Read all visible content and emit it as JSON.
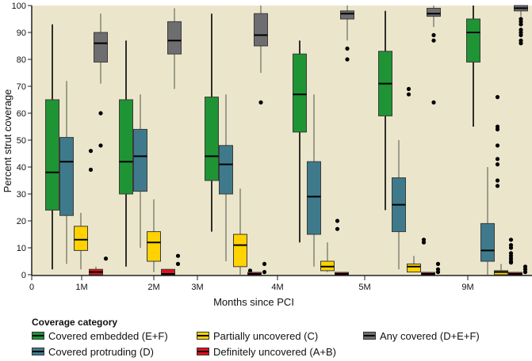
{
  "chart_data": {
    "type": "boxplot",
    "title": "",
    "xlabel": "Months since PCI",
    "ylabel": "Percent strut coverage",
    "ylim": [
      0,
      100
    ],
    "yticks": [
      0,
      10,
      20,
      30,
      40,
      50,
      60,
      70,
      80,
      90,
      100
    ],
    "xticks": [
      "0",
      "1M",
      "2M",
      "3M",
      "4M",
      "5M",
      "9M"
    ],
    "categories": [
      "1M",
      "2M",
      "3M",
      "4M",
      "5M",
      "9M"
    ],
    "grid": false,
    "legend_position": "bottom",
    "legend_title": "Coverage category",
    "series": [
      {
        "name": "Covered embedded (E+F)",
        "color": "#1f9435",
        "boxes": [
          {
            "min": 2,
            "q1": 24,
            "median": 38,
            "q3": 65,
            "max": 93,
            "outliers": []
          },
          {
            "min": 3,
            "q1": 30,
            "median": 42,
            "q3": 65,
            "max": 87,
            "outliers": []
          },
          {
            "min": 16,
            "q1": 35,
            "median": 44,
            "q3": 66,
            "max": 97,
            "outliers": []
          },
          {
            "min": 12,
            "q1": 53,
            "median": 67,
            "q3": 82,
            "max": 87,
            "outliers": []
          },
          {
            "min": 24,
            "q1": 59,
            "median": 71,
            "q3": 83,
            "max": 98,
            "outliers": [
              20
            ]
          },
          {
            "min": 55,
            "q1": 79,
            "median": 90,
            "q3": 95,
            "max": 100,
            "outliers": []
          }
        ]
      },
      {
        "name": "Covered protruding (D)",
        "color": "#3f7a8c",
        "boxes": [
          {
            "min": 4,
            "q1": 22,
            "median": 42,
            "q3": 51,
            "max": 72,
            "outliers": []
          },
          {
            "min": 10,
            "q1": 31,
            "median": 44,
            "q3": 54,
            "max": 67,
            "outliers": []
          },
          {
            "min": 5,
            "q1": 30,
            "median": 41,
            "q3": 48,
            "max": 67,
            "outliers": []
          },
          {
            "min": 3,
            "q1": 15,
            "median": 29,
            "q3": 42,
            "max": 67,
            "outliers": []
          },
          {
            "min": 2,
            "q1": 16,
            "median": 26,
            "q3": 36,
            "max": 50,
            "outliers": [
              67,
              69
            ]
          },
          {
            "min": 0,
            "q1": 5,
            "median": 9,
            "q3": 19,
            "max": 40,
            "outliers": [
              41,
              43,
              48,
              54,
              55,
              66,
              33,
              35
            ]
          }
        ]
      },
      {
        "name": "Partially uncovered (C)",
        "color": "#ffd200",
        "boxes": [
          {
            "min": 2,
            "q1": 9,
            "median": 13,
            "q3": 18,
            "max": 23,
            "outliers": [
              39,
              46
            ]
          },
          {
            "min": 1,
            "q1": 5,
            "median": 12,
            "q3": 16,
            "max": 28,
            "outliers": []
          },
          {
            "min": 0,
            "q1": 3,
            "median": 11,
            "q3": 15,
            "max": 32,
            "outliers": [
              1.5
            ]
          },
          {
            "min": 1,
            "q1": 1.5,
            "median": 3,
            "q3": 5,
            "max": 12,
            "outliers": [
              17,
              20
            ]
          },
          {
            "min": 1,
            "q1": 1,
            "median": 3,
            "q3": 4,
            "max": 7,
            "outliers": [
              12,
              13
            ]
          },
          {
            "min": 0,
            "q1": 0,
            "median": 1,
            "q3": 1.5,
            "max": 4,
            "outliers": [
              13,
              11,
              10,
              8,
              7,
              6,
              5,
              4.5
            ]
          }
        ]
      },
      {
        "name": "Definitely uncovered (A+B)",
        "color": "#e2101e",
        "boxes": [
          {
            "min": 0,
            "q1": 0,
            "median": 1,
            "q3": 2,
            "max": 3,
            "outliers": [
              6
            ]
          },
          {
            "min": 0,
            "q1": 0,
            "median": 0,
            "q3": 2,
            "max": 2,
            "outliers": [
              4,
              7
            ]
          },
          {
            "min": 0,
            "q1": 0,
            "median": 0,
            "q3": 0,
            "max": 0,
            "outliers": [
              1,
              4
            ]
          },
          {
            "min": 0,
            "q1": 0,
            "median": 0,
            "q3": 0,
            "max": 0,
            "outliers": []
          },
          {
            "min": 0,
            "q1": 0,
            "median": 0,
            "q3": 0,
            "max": 0,
            "outliers": [
              1,
              2,
              4
            ]
          },
          {
            "min": 0,
            "q1": 0,
            "median": 0,
            "q3": 0,
            "max": 0,
            "outliers": [
              1,
              2,
              3
            ]
          }
        ]
      },
      {
        "name": "Any covered (D+E+F)",
        "color": "#6e6e70",
        "boxes": [
          {
            "min": 71,
            "q1": 79,
            "median": 86,
            "q3": 90,
            "max": 97,
            "outliers": [
              48,
              60
            ]
          },
          {
            "min": 69,
            "q1": 82,
            "median": 87,
            "q3": 94,
            "max": 99,
            "outliers": []
          },
          {
            "min": 75,
            "q1": 85,
            "median": 89,
            "q3": 97,
            "max": 100,
            "outliers": [
              64
            ]
          },
          {
            "min": 87,
            "q1": 95,
            "median": 97,
            "q3": 98,
            "max": 100,
            "outliers": [
              80,
              84
            ]
          },
          {
            "min": 92,
            "q1": 96,
            "median": 97,
            "q3": 99,
            "max": 100,
            "outliers": [
              64,
              87,
              89
            ]
          },
          {
            "min": 96,
            "q1": 98,
            "median": 99,
            "q3": 100,
            "max": 100,
            "outliers": [
              86,
              87,
              89,
              90,
              91,
              93,
              94,
              95
            ]
          }
        ]
      }
    ]
  }
}
